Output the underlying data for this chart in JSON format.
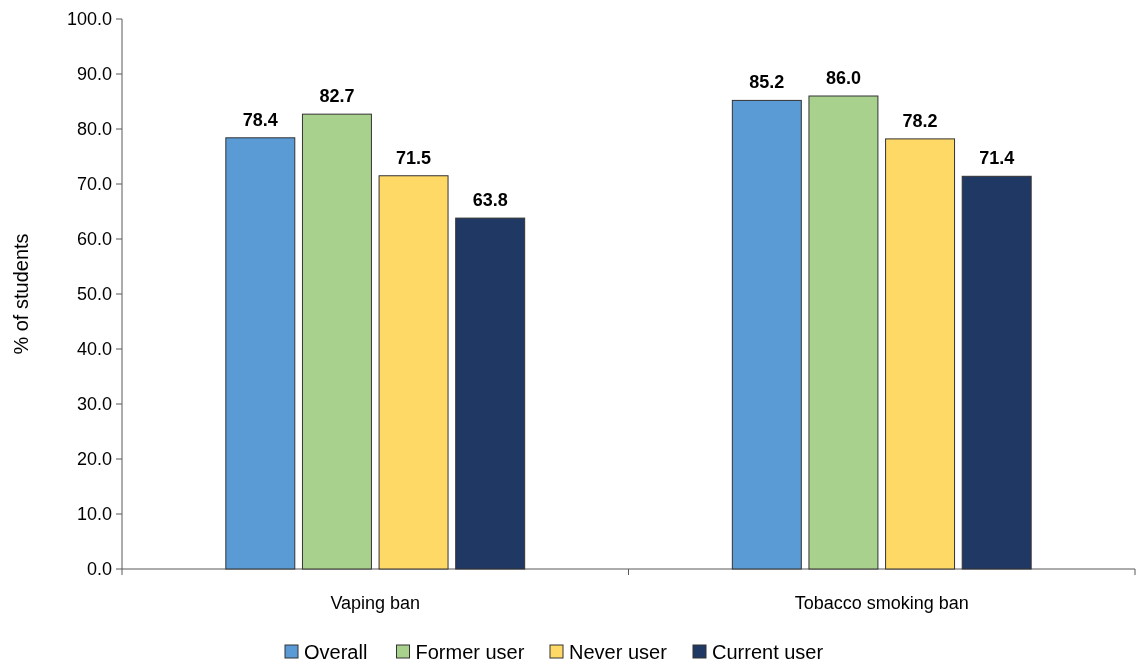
{
  "chart_data": {
    "type": "bar",
    "ylabel": "% of students",
    "categories": [
      "Vaping ban",
      "Tobacco smoking ban"
    ],
    "series": [
      {
        "name": "Overall",
        "color": "#5b9bd5",
        "values": [
          78.4,
          85.2
        ],
        "value_labels": [
          "78.4",
          "85.2"
        ]
      },
      {
        "name": "Former user",
        "color": "#a9d18e",
        "values": [
          82.7,
          86.0
        ],
        "value_labels": [
          "82.7",
          "86.0"
        ]
      },
      {
        "name": "Never user",
        "color": "#ffd966",
        "values": [
          71.5,
          78.2
        ],
        "value_labels": [
          "71.5",
          "78.2"
        ]
      },
      {
        "name": "Current user",
        "color": "#203864",
        "values": [
          63.8,
          71.4
        ],
        "value_labels": [
          "63.8",
          "71.4"
        ]
      }
    ],
    "ylim": [
      0,
      100
    ],
    "yticks": [
      {
        "value": 0,
        "label": "0.0"
      },
      {
        "value": 10,
        "label": "10.0"
      },
      {
        "value": 20,
        "label": "20.0"
      },
      {
        "value": 30,
        "label": "30.0"
      },
      {
        "value": 40,
        "label": "40.0"
      },
      {
        "value": 50,
        "label": "50.0"
      },
      {
        "value": 60,
        "label": "60.0"
      },
      {
        "value": 70,
        "label": "70.0"
      },
      {
        "value": 80,
        "label": "80.0"
      },
      {
        "value": 90,
        "label": "90.0"
      },
      {
        "value": 100,
        "label": "100.0"
      }
    ],
    "grid": false,
    "legend": "bottom"
  }
}
